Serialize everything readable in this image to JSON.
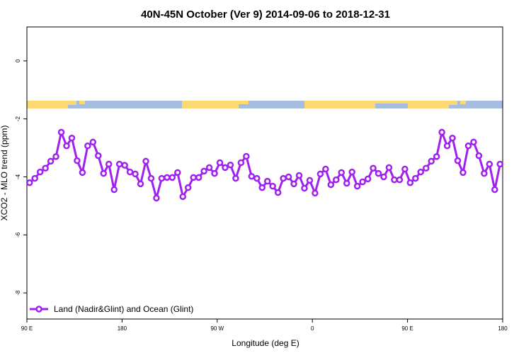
{
  "chart_data": {
    "type": "line",
    "title": "40N-45N October (Ver 9)   2014-09-06 to 2018-12-31",
    "x_label": "Longitude (deg E)",
    "y_label": "XCO2 - MLO trend (ppm)",
    "x": [
      92.5,
      97.5,
      102.5,
      107.5,
      112.5,
      117.5,
      122.5,
      127.5,
      132.5,
      137.5,
      142.5,
      147.5,
      152.5,
      157.5,
      162.5,
      167.5,
      172.5,
      177.5,
      182.5,
      187.5,
      192.5,
      197.5,
      202.5,
      207.5,
      212.5,
      217.5,
      222.5,
      227.5,
      232.5,
      237.5,
      242.5,
      247.5,
      252.5,
      257.5,
      262.5,
      267.5,
      272.5,
      277.5,
      282.5,
      287.5,
      292.5,
      297.5,
      302.5,
      307.5,
      312.5,
      317.5,
      322.5,
      327.5,
      332.5,
      337.5,
      342.5,
      347.5,
      352.5,
      357.5,
      362.5,
      367.5,
      372.5,
      377.5,
      382.5,
      387.5,
      392.5,
      397.5,
      402.5,
      407.5,
      412.5,
      417.5,
      422.5,
      427.5,
      432.5,
      437.5,
      442.5,
      447.5,
      452.5,
      457.5,
      462.5,
      467.5,
      472.5,
      477.5,
      482.5,
      487.5,
      492.5,
      497.5,
      502.5,
      507.5,
      512.5,
      517.5,
      522.5,
      527.5,
      532.5,
      537.5
    ],
    "series": [
      {
        "name": "Land (Nadir&Glint) and Ocean (Glint)",
        "color": "#a020f0",
        "values": [
          -4.2,
          -4.05,
          -3.83,
          -3.7,
          -3.46,
          -3.3,
          -2.46,
          -2.93,
          -2.66,
          -3.44,
          -3.85,
          -2.93,
          -2.8,
          -3.27,
          -3.88,
          -3.56,
          -4.44,
          -3.56,
          -3.6,
          -3.83,
          -3.9,
          -4.24,
          -3.46,
          -4.05,
          -4.73,
          -4.05,
          -4.02,
          -4.02,
          -3.85,
          -4.68,
          -4.37,
          -4.02,
          -4.02,
          -3.8,
          -3.68,
          -3.88,
          -3.51,
          -3.68,
          -3.59,
          -4.05,
          -3.51,
          -3.29,
          -3.98,
          -4.05,
          -4.37,
          -4.15,
          -4.32,
          -4.54,
          -4.05,
          -4.0,
          -4.24,
          -3.95,
          -4.39,
          -4.12,
          -4.56,
          -3.9,
          -3.73,
          -4.27,
          -4.1,
          -3.85,
          -4.22,
          -3.83,
          -4.32,
          -4.17,
          -4.07,
          -3.7,
          -3.88,
          -4.0,
          -3.68,
          -4.1,
          -4.1,
          -3.73,
          -4.2,
          -4.05,
          -3.83,
          -3.7,
          -3.46,
          -3.3,
          -2.46,
          -2.93,
          -2.66,
          -3.44,
          -3.85,
          -2.93,
          -2.8,
          -3.27,
          -3.88,
          -3.56,
          -4.44,
          -3.56
        ]
      }
    ],
    "xlim": [
      90,
      540
    ],
    "xticks": [
      {
        "value": 90,
        "label": "90 E"
      },
      180,
      {
        "value": 270,
        "label": "90 W"
      },
      {
        "value": 360,
        "label": "0"
      },
      {
        "value": 450,
        "label": "90 E"
      },
      {
        "value": 540,
        "label": "180"
      }
    ],
    "ylim": [
      -8.9,
      1.17
    ],
    "yticks": [
      0,
      -2,
      -4,
      -6,
      -8
    ],
    "legend": "bottom-left"
  }
}
